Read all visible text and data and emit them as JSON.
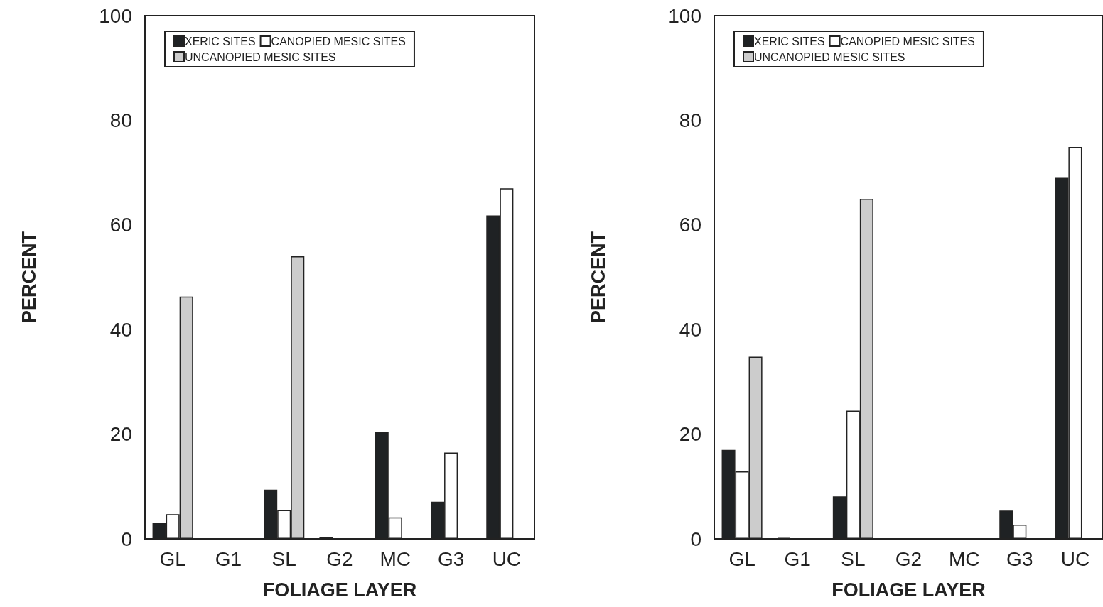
{
  "chart_data": [
    {
      "type": "bar",
      "xlabel": "FOLIAGE LAYER",
      "ylabel": "PERCENT",
      "categories": [
        "GL",
        "G1",
        "SL",
        "G2",
        "MC",
        "G3",
        "UC"
      ],
      "ylim": [
        0,
        100
      ],
      "yticks": [
        0,
        20,
        40,
        60,
        80,
        100
      ],
      "grid": false,
      "legend": "top",
      "series": [
        {
          "name": "XERIC SITES",
          "color": "#1f2224",
          "values": [
            3.1,
            null,
            9.4,
            0.3,
            20.4,
            7.1,
            61.8
          ]
        },
        {
          "name": "CANOPIED MESIC SITES",
          "color": "#ffffff",
          "values": [
            4.7,
            null,
            5.5,
            null,
            4.1,
            16.5,
            67.0
          ]
        },
        {
          "name": "UNCANOPIED MESIC SITES",
          "color": "#cccccc",
          "values": [
            46.3,
            null,
            54.0,
            null,
            null,
            null,
            null
          ]
        }
      ]
    },
    {
      "type": "bar",
      "xlabel": "FOLIAGE LAYER",
      "ylabel": "PERCENT",
      "categories": [
        "GL",
        "G1",
        "SL",
        "G2",
        "MC",
        "G3",
        "UC"
      ],
      "ylim": [
        0,
        100
      ],
      "yticks": [
        0,
        20,
        40,
        60,
        80,
        100
      ],
      "grid": false,
      "legend": "top",
      "series": [
        {
          "name": "XERIC SITES",
          "color": "#1f2224",
          "values": [
            17.0,
            0.2,
            8.1,
            null,
            null,
            5.4,
            69.0
          ]
        },
        {
          "name": "CANOPIED MESIC SITES",
          "color": "#ffffff",
          "values": [
            12.9,
            null,
            24.5,
            null,
            null,
            2.7,
            74.9
          ]
        },
        {
          "name": "UNCANOPIED MESIC SITES",
          "color": "#cccccc",
          "values": [
            34.8,
            null,
            65.0,
            null,
            null,
            null,
            null
          ]
        }
      ]
    }
  ]
}
